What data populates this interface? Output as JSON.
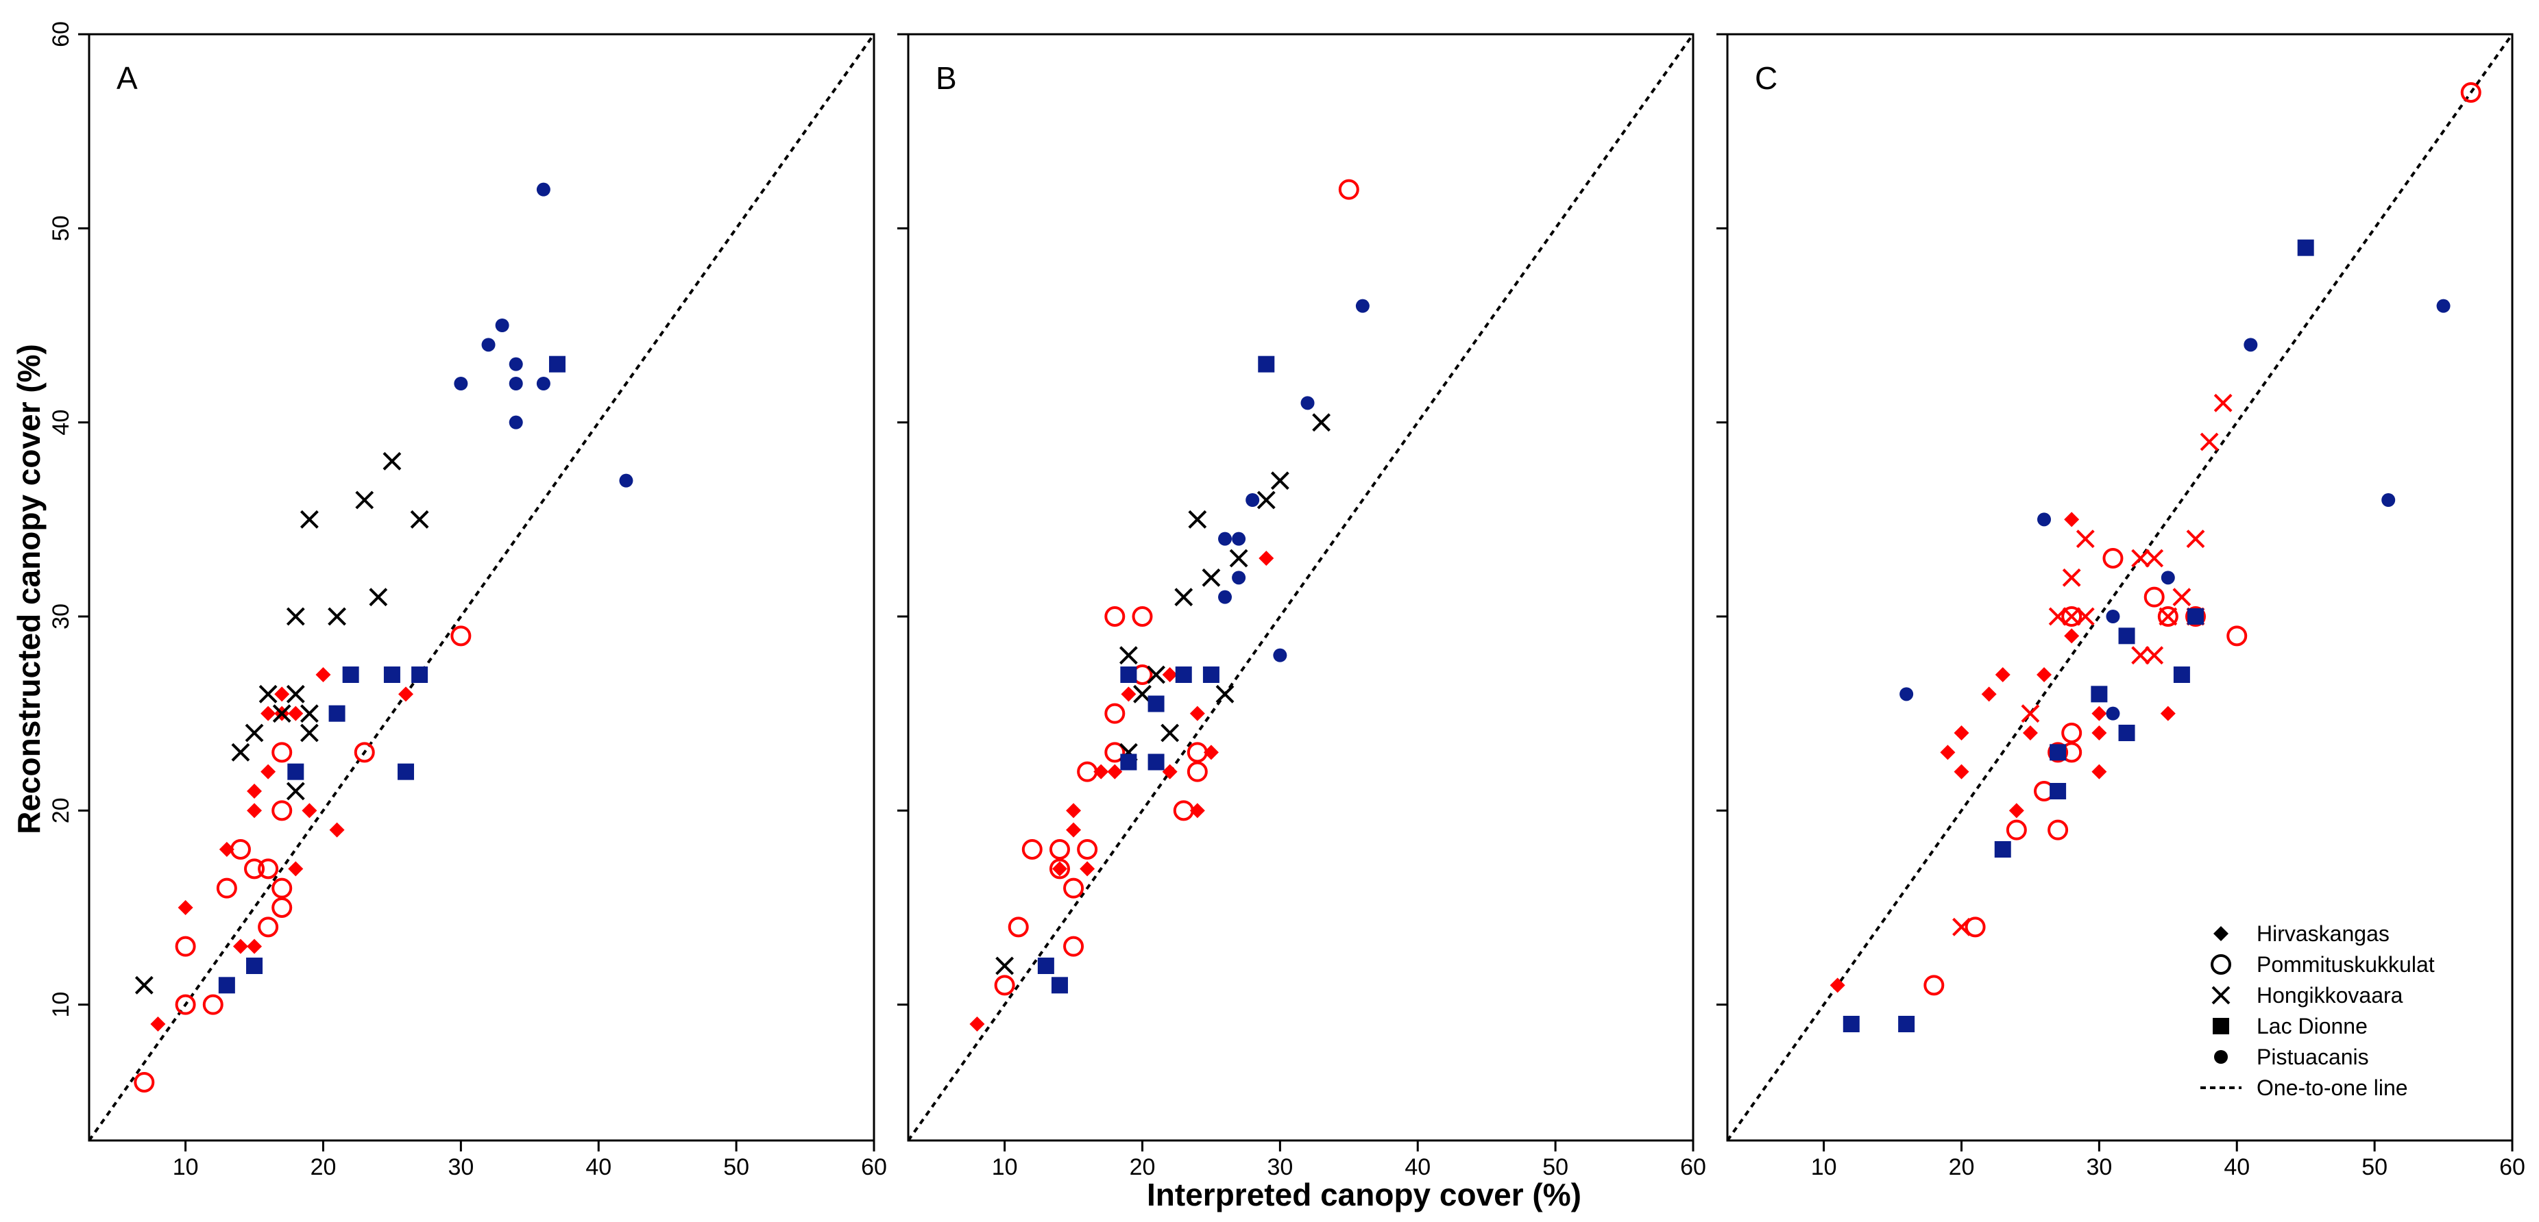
{
  "chart_data": {
    "type": "scatter",
    "xlabel": "Interpreted canopy cover (%)",
    "ylabel": "Reconstructed canopy cover (%)",
    "xlim": [
      3,
      60
    ],
    "ylim": [
      3,
      60
    ],
    "xticks": [
      "10",
      "20",
      "30",
      "40",
      "50",
      "60"
    ],
    "yticks": [
      "10",
      "20",
      "30",
      "40",
      "50",
      "60"
    ],
    "colors": {
      "red": "#ff0000",
      "blue": "#0a1e8c",
      "black": "#000000"
    },
    "legend": {
      "position": "bottom-right",
      "entries": [
        {
          "label": "Hirvaskangas",
          "marker": "diamond"
        },
        {
          "label": "Pommituskukkulat",
          "marker": "circle-open"
        },
        {
          "label": "Hongikkovaara",
          "marker": "cross"
        },
        {
          "label": "Lac Dionne",
          "marker": "square"
        },
        {
          "label": "Pistuacanis",
          "marker": "dot"
        },
        {
          "label": "One-to-one line",
          "marker": "dashed-line"
        }
      ]
    },
    "panels": [
      {
        "label": "A",
        "series": [
          {
            "name": "Hirvaskangas",
            "marker": "diamond",
            "color": "red",
            "points": [
              [
                8,
                9
              ],
              [
                10,
                15
              ],
              [
                14,
                13
              ],
              [
                15,
                13
              ],
              [
                13,
                18
              ],
              [
                15,
                20
              ],
              [
                15,
                21
              ],
              [
                16,
                22
              ],
              [
                16,
                25
              ],
              [
                17,
                25
              ],
              [
                18,
                25
              ],
              [
                17,
                26
              ],
              [
                18,
                17
              ],
              [
                19,
                20
              ],
              [
                20,
                27
              ],
              [
                21,
                19
              ],
              [
                26,
                26
              ]
            ]
          },
          {
            "name": "Pommituskukkulat",
            "marker": "circle-open",
            "color": "red",
            "points": [
              [
                7,
                6
              ],
              [
                10,
                10
              ],
              [
                12,
                10
              ],
              [
                10,
                13
              ],
              [
                13,
                16
              ],
              [
                14,
                18
              ],
              [
                15,
                17
              ],
              [
                16,
                17
              ],
              [
                16,
                14
              ],
              [
                17,
                16
              ],
              [
                17,
                15
              ],
              [
                17,
                20
              ],
              [
                17,
                23
              ],
              [
                23,
                23
              ],
              [
                30,
                29
              ]
            ]
          },
          {
            "name": "Hongikkovaara",
            "marker": "cross",
            "color": "black",
            "points": [
              [
                7,
                11
              ],
              [
                14,
                23
              ],
              [
                15,
                24
              ],
              [
                16,
                26
              ],
              [
                17,
                25
              ],
              [
                18,
                26
              ],
              [
                18,
                21
              ],
              [
                19,
                25
              ],
              [
                19,
                24
              ],
              [
                18,
                30
              ],
              [
                21,
                30
              ],
              [
                19,
                35
              ],
              [
                23,
                36
              ],
              [
                24,
                31
              ],
              [
                25,
                38
              ],
              [
                27,
                35
              ]
            ]
          },
          {
            "name": "Lac Dionne",
            "marker": "square",
            "color": "blue",
            "points": [
              [
                13,
                11
              ],
              [
                15,
                12
              ],
              [
                18,
                22
              ],
              [
                21,
                25
              ],
              [
                22,
                27
              ],
              [
                25,
                27
              ],
              [
                27,
                27
              ],
              [
                26,
                22
              ],
              [
                37,
                43
              ]
            ]
          },
          {
            "name": "Pistuacanis",
            "marker": "dot",
            "color": "blue",
            "points": [
              [
                30,
                42
              ],
              [
                32,
                44
              ],
              [
                33,
                45
              ],
              [
                34,
                43
              ],
              [
                34,
                42
              ],
              [
                34,
                40
              ],
              [
                36,
                42
              ],
              [
                36,
                52
              ],
              [
                42,
                37
              ]
            ]
          }
        ]
      },
      {
        "label": "B",
        "series": [
          {
            "name": "Hirvaskangas",
            "marker": "diamond",
            "color": "red",
            "points": [
              [
                8,
                9
              ],
              [
                14,
                17
              ],
              [
                15,
                19
              ],
              [
                15,
                20
              ],
              [
                16,
                17
              ],
              [
                17,
                22
              ],
              [
                18,
                22
              ],
              [
                19,
                26
              ],
              [
                22,
                22
              ],
              [
                22,
                27
              ],
              [
                24,
                25
              ],
              [
                24,
                20
              ],
              [
                25,
                23
              ],
              [
                29,
                33
              ]
            ]
          },
          {
            "name": "Pommituskukkulat",
            "marker": "circle-open",
            "color": "red",
            "points": [
              [
                10,
                11
              ],
              [
                11,
                14
              ],
              [
                12,
                18
              ],
              [
                14,
                18
              ],
              [
                14,
                17
              ],
              [
                15,
                16
              ],
              [
                15,
                13
              ],
              [
                16,
                18
              ],
              [
                16,
                22
              ],
              [
                18,
                23
              ],
              [
                18,
                25
              ],
              [
                18,
                30
              ],
              [
                20,
                30
              ],
              [
                20,
                27
              ],
              [
                23,
                20
              ],
              [
                24,
                22
              ],
              [
                24,
                23
              ],
              [
                35,
                52
              ]
            ]
          },
          {
            "name": "Hongikkovaara",
            "marker": "cross",
            "color": "black",
            "points": [
              [
                10,
                12
              ],
              [
                19,
                28
              ],
              [
                19,
                23
              ],
              [
                20,
                26
              ],
              [
                21,
                27
              ],
              [
                22,
                24
              ],
              [
                23,
                31
              ],
              [
                24,
                35
              ],
              [
                25,
                32
              ],
              [
                26,
                26
              ],
              [
                27,
                33
              ],
              [
                29,
                36
              ],
              [
                30,
                37
              ],
              [
                33,
                40
              ]
            ]
          },
          {
            "name": "Lac Dionne",
            "marker": "square",
            "color": "blue",
            "points": [
              [
                13,
                12
              ],
              [
                14,
                11
              ],
              [
                19,
                22.5
              ],
              [
                19,
                27
              ],
              [
                21,
                22.5
              ],
              [
                21,
                25.5
              ],
              [
                23,
                27
              ],
              [
                25,
                27
              ],
              [
                29,
                43
              ]
            ]
          },
          {
            "name": "Pistuacanis",
            "marker": "dot",
            "color": "blue",
            "points": [
              [
                26,
                31
              ],
              [
                26,
                34
              ],
              [
                27,
                32
              ],
              [
                27,
                34
              ],
              [
                28,
                36
              ],
              [
                30,
                28
              ],
              [
                32,
                41
              ],
              [
                36,
                46
              ]
            ]
          }
        ]
      },
      {
        "label": "C",
        "series": [
          {
            "name": "Hirvaskangas",
            "marker": "diamond",
            "color": "red",
            "points": [
              [
                11,
                11
              ],
              [
                19,
                23
              ],
              [
                20,
                24
              ],
              [
                20,
                22
              ],
              [
                22,
                26
              ],
              [
                23,
                27
              ],
              [
                24,
                20
              ],
              [
                25,
                24
              ],
              [
                26,
                27
              ],
              [
                28,
                29
              ],
              [
                28,
                35
              ],
              [
                30,
                22
              ],
              [
                30,
                24
              ],
              [
                30,
                25
              ],
              [
                35,
                25
              ]
            ]
          },
          {
            "name": "Pommituskukkulat",
            "marker": "circle-open",
            "color": "red",
            "points": [
              [
                18,
                11
              ],
              [
                21,
                14
              ],
              [
                24,
                19
              ],
              [
                26,
                21
              ],
              [
                27,
                19
              ],
              [
                27,
                23
              ],
              [
                28,
                23
              ],
              [
                28,
                24
              ],
              [
                28,
                30
              ],
              [
                31,
                33
              ],
              [
                34,
                31
              ],
              [
                35,
                30
              ],
              [
                37,
                30
              ],
              [
                40,
                29
              ],
              [
                57,
                57
              ]
            ]
          },
          {
            "name": "Hongikkovaara",
            "marker": "cross",
            "color": "red",
            "points": [
              [
                20,
                14
              ],
              [
                25,
                25
              ],
              [
                27,
                30
              ],
              [
                28,
                30
              ],
              [
                28,
                32
              ],
              [
                29,
                34
              ],
              [
                29,
                30
              ],
              [
                33,
                28
              ],
              [
                33,
                33
              ],
              [
                34,
                28
              ],
              [
                34,
                33
              ],
              [
                35,
                30
              ],
              [
                36,
                31
              ],
              [
                37,
                34
              ],
              [
                37,
                30
              ],
              [
                38,
                39
              ],
              [
                39,
                41
              ]
            ]
          },
          {
            "name": "Lac Dionne",
            "marker": "square",
            "color": "blue",
            "points": [
              [
                12,
                9
              ],
              [
                16,
                9
              ],
              [
                23,
                18
              ],
              [
                27,
                21
              ],
              [
                27,
                23
              ],
              [
                30,
                26
              ],
              [
                32,
                24
              ],
              [
                32,
                29
              ],
              [
                36,
                27
              ],
              [
                37,
                30
              ],
              [
                45,
                49
              ]
            ]
          },
          {
            "name": "Pistuacanis",
            "marker": "dot",
            "color": "blue",
            "points": [
              [
                16,
                26
              ],
              [
                26,
                35
              ],
              [
                31,
                25
              ],
              [
                31,
                30
              ],
              [
                35,
                32
              ],
              [
                41,
                44
              ],
              [
                51,
                36
              ],
              [
                55,
                46
              ]
            ]
          }
        ]
      }
    ]
  }
}
